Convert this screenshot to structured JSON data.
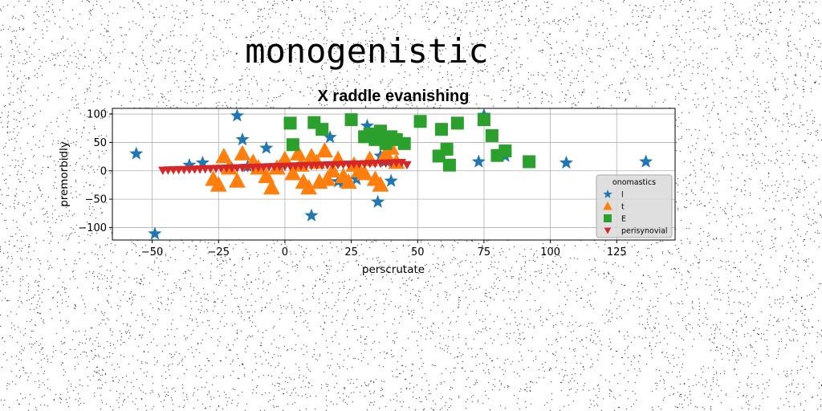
{
  "heading": "monogenistic",
  "chart_data": {
    "type": "scatter",
    "title": "X raddle evanishing",
    "xlabel": "perscrutate",
    "ylabel": "premorbidly",
    "xlim": [
      -65,
      147
    ],
    "ylim": [
      -122,
      110
    ],
    "xticks": [
      -50,
      -25,
      0,
      25,
      50,
      75,
      100,
      125
    ],
    "yticks": [
      -100,
      -50,
      0,
      50,
      100
    ],
    "xtick_labels": [
      "−50",
      "−25",
      "0",
      "25",
      "50",
      "75",
      "100",
      "125"
    ],
    "ytick_labels": [
      "−100",
      "−50",
      "0",
      "50",
      "100"
    ],
    "grid": true,
    "legend": {
      "title": "onomastics",
      "placement": "right"
    },
    "series": [
      {
        "name": "l",
        "marker": "star",
        "color": "#1f77b4",
        "x": [
          -56,
          -49,
          -36,
          -31,
          -20,
          -18,
          -16,
          -14,
          -7,
          -2,
          10,
          17,
          20,
          22,
          27,
          31,
          35,
          36,
          38,
          40,
          73,
          75,
          83,
          106,
          136
        ],
        "y": [
          30,
          -111,
          10,
          14,
          4,
          97,
          55,
          8,
          40,
          8,
          -79,
          59,
          -19,
          -20,
          -15,
          79,
          -55,
          26,
          17,
          -18,
          16,
          98,
          26,
          14,
          16
        ]
      },
      {
        "name": "t",
        "marker": "triangle-up",
        "color": "#ff7f0e",
        "x": [
          -27,
          -25,
          -23,
          -21,
          -18,
          -16,
          -12,
          -10,
          -7,
          -5,
          -3,
          0,
          3,
          5,
          6,
          7,
          9,
          10,
          12,
          13,
          15,
          16,
          18,
          20,
          22,
          24,
          26,
          28,
          30,
          32,
          34,
          36,
          38,
          40,
          42
        ],
        "y": [
          -15,
          -25,
          25,
          5,
          -18,
          30,
          15,
          5,
          -10,
          -30,
          5,
          20,
          -5,
          30,
          10,
          -20,
          -30,
          25,
          15,
          -20,
          35,
          -15,
          0,
          20,
          -10,
          -20,
          10,
          0,
          -5,
          20,
          -15,
          -25,
          30,
          40,
          15
        ]
      },
      {
        "name": "E",
        "marker": "square",
        "color": "#2ca02c",
        "x": [
          2,
          3,
          11,
          14,
          25,
          30,
          32,
          34,
          36,
          38,
          40,
          42,
          45,
          51,
          58,
          59,
          61,
          62,
          65,
          75,
          78,
          80,
          83,
          92
        ],
        "y": [
          84,
          46,
          85,
          73,
          90,
          60,
          65,
          55,
          70,
          48,
          60,
          55,
          48,
          87,
          26,
          73,
          38,
          10,
          84,
          90,
          62,
          27,
          35,
          16
        ]
      },
      {
        "name": "perisynovial",
        "marker": "triangle-down",
        "color": "#d62728",
        "x": [
          -46,
          -44,
          -42,
          -40,
          -38,
          -36,
          -34,
          -32,
          -30,
          -28,
          -26,
          -24,
          -22,
          -20,
          -18,
          -16,
          -14,
          -12,
          -10,
          -8,
          -6,
          -4,
          -2,
          0,
          2,
          4,
          6,
          8,
          10,
          12,
          14,
          16,
          18,
          20,
          22,
          24,
          26,
          28,
          30,
          32,
          34,
          36,
          38,
          40,
          42,
          44,
          46
        ],
        "y": [
          1,
          1.3,
          1.6,
          1.9,
          2.2,
          2.5,
          2.8,
          3.1,
          3.4,
          3.7,
          4,
          4.3,
          4.6,
          4.9,
          5.2,
          5.5,
          5.8,
          6.1,
          6.4,
          6.7,
          7,
          7.3,
          7.6,
          7.9,
          8.2,
          8.5,
          8.8,
          9.1,
          9.4,
          9.7,
          10,
          10.3,
          10.6,
          10.9,
          11.2,
          11.5,
          11.8,
          12.1,
          12.4,
          12.7,
          13,
          13.3,
          13.6,
          13.9,
          14.2,
          14.5,
          10.5
        ]
      }
    ]
  }
}
